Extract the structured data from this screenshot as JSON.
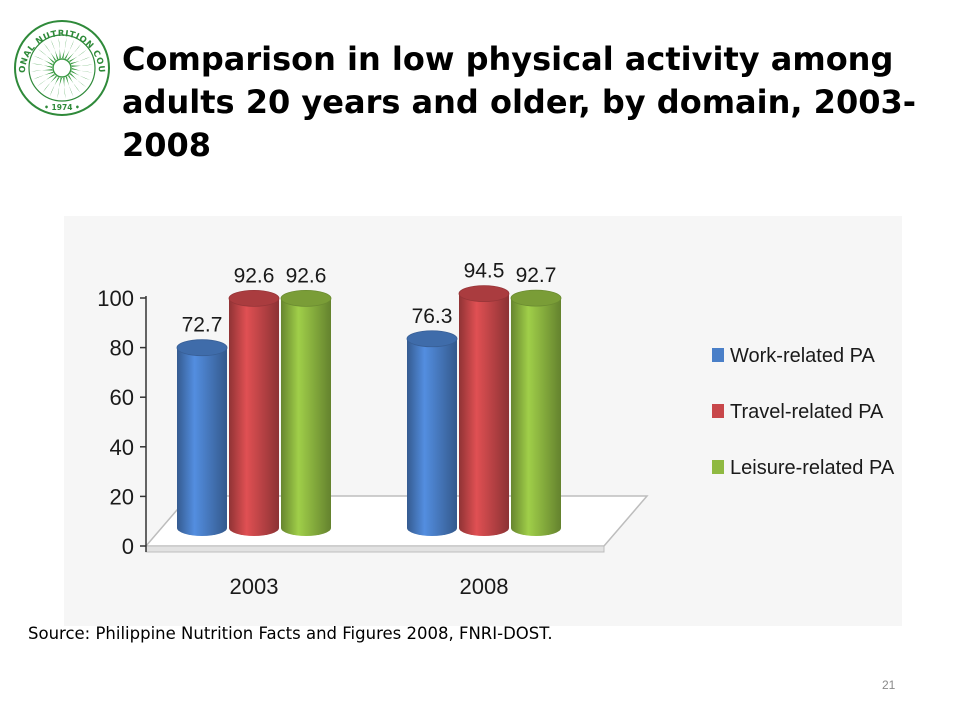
{
  "slide": {
    "title": "Comparison in low physical activity among adults 20 years and older, by domain, 2003-2008",
    "source": "Source: Philippine Nutrition Facts and Figures 2008, FNRI-DOST.",
    "page_number": "21"
  },
  "logo": {
    "text_top": "NATIONAL NUTRITION COUNCIL",
    "year": "• 1974 •",
    "colors": {
      "ring": "#2f8a3a",
      "sun": "#3a9a43"
    }
  },
  "chart_data": {
    "type": "bar",
    "style": "3d-cylinder",
    "categories": [
      "2003",
      "2008"
    ],
    "series": [
      {
        "name": "Work-related PA",
        "values": [
          72.7,
          76.3
        ],
        "color": "#4a7fc8"
      },
      {
        "name": "Travel-related PA",
        "values": [
          92.6,
          94.5
        ],
        "color": "#c8474a"
      },
      {
        "name": "Leisure-related PA",
        "values": [
          92.6,
          92.7
        ],
        "color": "#8fb941"
      }
    ],
    "yticks": [
      0,
      20,
      40,
      60,
      80,
      100
    ],
    "ylim": [
      0,
      100
    ],
    "grid": false,
    "legend_position": "right"
  }
}
